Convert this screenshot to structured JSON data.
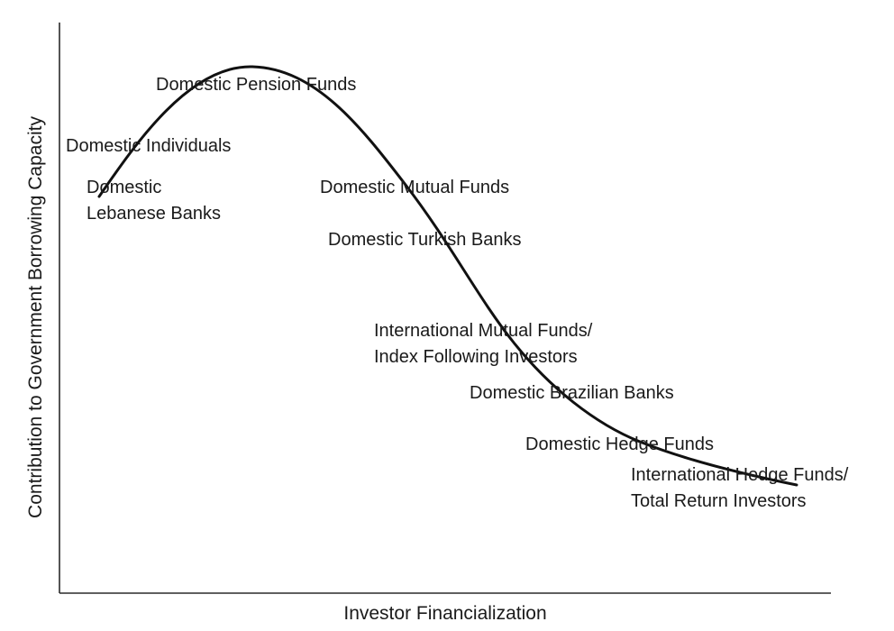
{
  "axes": {
    "xlabel": "Investor Financialization",
    "ylabel": "Contribution to Government Borrowing Capacity"
  },
  "labels": {
    "pension_funds": "Domestic Pension Funds",
    "individuals": "Domestic Individuals",
    "lebanese_banks_line1": "Domestic",
    "lebanese_banks_line2": "Lebanese Banks",
    "mutual_funds": "Domestic Mutual Funds",
    "turkish_banks": "Domestic Turkish Banks",
    "intl_mutual_line1": "International Mutual Funds/",
    "intl_mutual_line2": "Index Following Investors",
    "brazilian_banks": "Domestic Brazilian Banks",
    "hedge_funds": "Domestic Hedge Funds",
    "intl_hedge_line1": "International Hedge Funds/",
    "intl_hedge_line2": "Total Return Investors"
  }
}
